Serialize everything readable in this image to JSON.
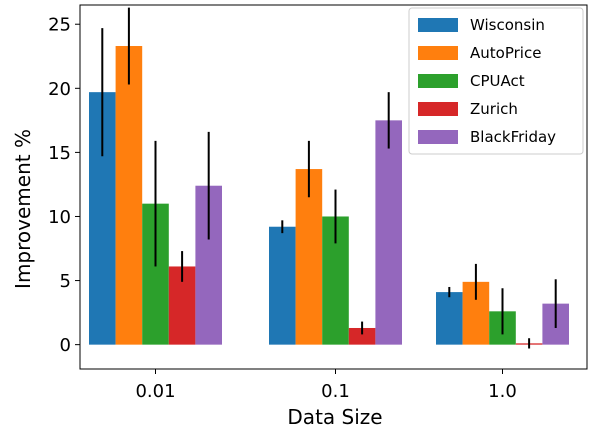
{
  "chart_data": {
    "type": "bar",
    "xlabel": "Data Size",
    "ylabel": "Improvement %",
    "ylim": [
      -1.9,
      26.5
    ],
    "yticks": [
      0,
      5,
      10,
      15,
      20,
      25
    ],
    "categories": [
      "0.01",
      "0.1",
      "1.0"
    ],
    "grid": false,
    "legend_position": "top-right",
    "series": [
      {
        "name": "Wisconsin",
        "color": "#1f77b4",
        "values": [
          19.7,
          9.2,
          4.1
        ],
        "errors": [
          5.0,
          0.5,
          0.4
        ]
      },
      {
        "name": "AutoPrice",
        "color": "#ff7f0e",
        "values": [
          23.3,
          13.7,
          4.9
        ],
        "errors": [
          3.0,
          2.2,
          1.4
        ]
      },
      {
        "name": "CPUAct",
        "color": "#2ca02c",
        "values": [
          11.0,
          10.0,
          2.6
        ],
        "errors": [
          4.9,
          2.1,
          1.8
        ]
      },
      {
        "name": "Zurich",
        "color": "#d62728",
        "values": [
          6.1,
          1.3,
          0.1
        ],
        "errors": [
          1.2,
          0.5,
          0.4
        ]
      },
      {
        "name": "BlackFriday",
        "color": "#9467bd",
        "values": [
          12.4,
          17.5,
          3.2
        ],
        "errors": [
          4.2,
          2.2,
          1.9
        ]
      }
    ]
  }
}
